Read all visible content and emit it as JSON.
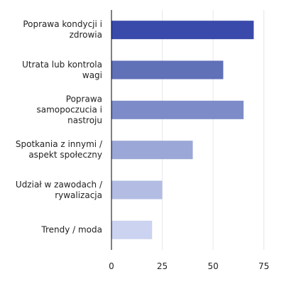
{
  "chart_data": {
    "type": "barh",
    "categories": [
      "Poprawa kondycji i\nzdrowia",
      "Utrata lub kontrola\nwagi",
      "Poprawa\nsamopoczucia i\nnastroju",
      "Spotkania z innymi /\naspekt społeczny",
      "Udział w zawodach /\nrywalizacja",
      "Trendy / moda"
    ],
    "values": [
      70,
      55,
      65,
      40,
      25,
      20
    ],
    "colors": [
      "#3a4aaa",
      "#6171b8",
      "#7d8cc8",
      "#9ba7d6",
      "#b3bde3",
      "#cbd3f0"
    ],
    "xlim": [
      0,
      80
    ],
    "xticks": [
      0,
      25,
      50,
      75
    ],
    "grid": true
  }
}
